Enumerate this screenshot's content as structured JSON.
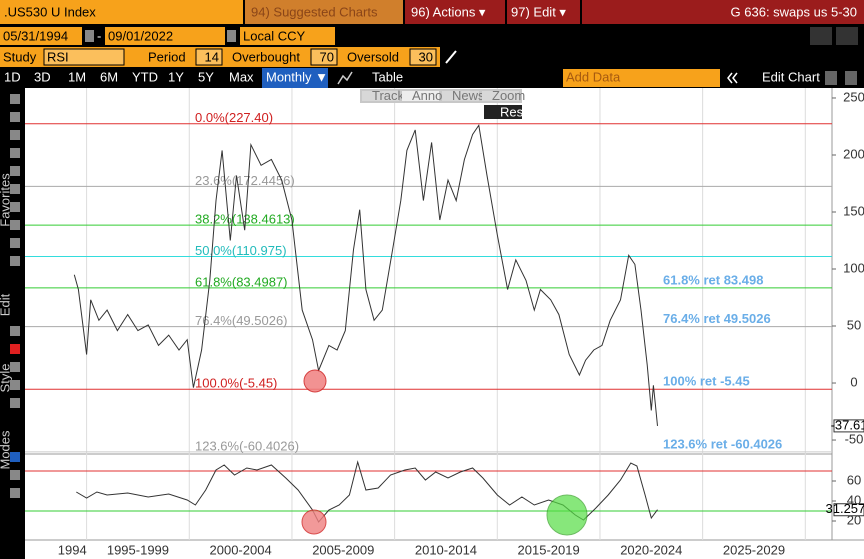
{
  "header": {
    "ticker": ".US530 U Index",
    "suggested": "94) Suggested Charts",
    "actions": "96) Actions ▾",
    "edit": "97) Edit ▾",
    "function": "G 636: swaps us 5-30"
  },
  "range": {
    "start": "05/31/1994",
    "dash": "-",
    "end": "09/01/2022",
    "currency": "Local CCY"
  },
  "study": {
    "label": "Study",
    "name": "RSI",
    "period_label": "Period",
    "period": 14,
    "overbought_label": "Overbought",
    "overbought": 70,
    "oversold_label": "Oversold",
    "oversold": 30
  },
  "toolbar": {
    "periods": [
      "1D",
      "3D",
      "1M",
      "6M",
      "YTD",
      "1Y",
      "5Y",
      "Max"
    ],
    "frequency": "Monthly ▼",
    "table": "Table",
    "add_data": "Add Data",
    "edit_chart": "Edit Chart"
  },
  "side_tabs": [
    "Favorites",
    "Edit",
    "Style",
    "Modes"
  ],
  "float_tools": [
    "Track",
    "Annotate",
    "News",
    "Zoom"
  ],
  "reset": "Reset",
  "chart_data": [
    {
      "type": "line",
      "xlim": [
        1992,
        2031.3
      ],
      "ylim": [
        -60.5,
        257
      ],
      "yticks": [
        250,
        200,
        150,
        100,
        50,
        0,
        -50
      ],
      "xgrid": [
        1995,
        2000,
        2005,
        2010,
        2015,
        2020,
        2025,
        2030
      ],
      "x": [
        1994.4,
        1994.6,
        1995.0,
        1995.2,
        1995.6,
        1996.0,
        1996.5,
        1997.0,
        1997.5,
        1998.0,
        1998.5,
        1999.0,
        1999.5,
        1999.9,
        2000.2,
        2000.6,
        2001.0,
        2001.3,
        2001.6,
        2002.0,
        2002.3,
        2002.7,
        2003.0,
        2003.5,
        2004.0,
        2004.5,
        2005.0,
        2005.5,
        2006.0,
        2006.3,
        2006.8,
        2007.2,
        2007.6,
        2008.0,
        2008.3,
        2008.6,
        2009.0,
        2009.4,
        2009.9,
        2010.3,
        2010.6,
        2011.0,
        2011.4,
        2011.8,
        2012.2,
        2012.6,
        2013.0,
        2013.4,
        2013.8,
        2014.1,
        2014.5,
        2015.0,
        2015.5,
        2015.9,
        2016.4,
        2016.8,
        2017.1,
        2017.6,
        2018.0,
        2018.5,
        2019.0,
        2019.3,
        2019.7,
        2020.1,
        2020.5,
        2021.0,
        2021.4,
        2021.7,
        2022.0,
        2022.3,
        2022.5,
        2022.6,
        2022.7,
        2022.8
      ],
      "series": [
        {
          "color": "#333333",
          "values": [
            95,
            82,
            25,
            73,
            55,
            64,
            46,
            60,
            46,
            51,
            33,
            42,
            29,
            38,
            -4,
            29,
            90,
            160,
            204,
            125,
            182,
            134,
            209,
            191,
            196,
            178,
            143,
            64,
            38,
            11,
            33,
            29,
            46,
            117,
            152,
            82,
            55,
            64,
            117,
            160,
            204,
            222,
            160,
            211,
            143,
            178,
            160,
            196,
            218,
            226,
            182,
            130,
            82,
            108,
            90,
            64,
            82,
            73,
            60,
            25,
            7,
            20,
            29,
            33,
            55,
            73,
            112,
            104,
            64,
            16,
            -24,
            -2,
            -19,
            -37.61
          ]
        }
      ],
      "levels": [
        {
          "value": 227.4,
          "label": "0.0%(227.40)",
          "color": "#e03030"
        },
        {
          "value": 172.4456,
          "label": "23.6%(172.4456)",
          "color": "#aaaaaa"
        },
        {
          "value": 138.4613,
          "label": "38.2%(138.4613)",
          "color": "#33cc33"
        },
        {
          "value": 110.975,
          "label": "50.0%(110.975)",
          "color": "#33dddd"
        },
        {
          "value": 83.4987,
          "label": "61.8%(83.4987)",
          "color": "#33cc33",
          "note": "61.8% ret 83.498"
        },
        {
          "value": 49.5026,
          "label": "76.4%(49.5026)",
          "color": "#aaaaaa",
          "note": "76.4% ret 49.5026"
        },
        {
          "value": -5.45,
          "label": "100.0%(-5.45)",
          "color": "#e03030",
          "note": "100% ret -5.45"
        },
        {
          "value": -60.4026,
          "label": "123.6%(-60.4026)",
          "color": "#cccccc",
          "note": "123.6% ret -60.4026"
        }
      ]
    },
    {
      "type": "line",
      "xlim": [
        1992,
        2031.3
      ],
      "ylim": [
        4,
        85
      ],
      "yticks": [
        60,
        40,
        20
      ],
      "xgrid": [
        1995,
        2000,
        2005,
        2010,
        2015,
        2020,
        2025,
        2030
      ],
      "overbought_color": "#e03030",
      "oversold_color": "#33cc33",
      "xticks": [
        {
          "value": 1994.3,
          "label": "1994"
        },
        {
          "value": 1997.5,
          "label": "1995-1999"
        },
        {
          "value": 2002.5,
          "label": "2000-2004"
        },
        {
          "value": 2007.5,
          "label": "2005-2009"
        },
        {
          "value": 2012.5,
          "label": "2010-2014"
        },
        {
          "value": 2017.5,
          "label": "2015-2019"
        },
        {
          "value": 2022.5,
          "label": "2020-2024"
        },
        {
          "value": 2027.5,
          "label": "2025-2029"
        }
      ],
      "x": [
        1994.5,
        1995.0,
        1995.5,
        1996.0,
        1997.0,
        1998.0,
        1999.0,
        1999.9,
        2000.3,
        2000.8,
        2001.3,
        2001.7,
        2002.2,
        2002.8,
        2003.3,
        2004.0,
        2004.7,
        2005.3,
        2006.0,
        2006.3,
        2006.8,
        2007.3,
        2007.8,
        2008.2,
        2008.6,
        2009.2,
        2009.8,
        2010.5,
        2011.0,
        2011.5,
        2012.0,
        2012.6,
        2013.2,
        2013.8,
        2014.3,
        2015.0,
        2015.6,
        2016.2,
        2016.8,
        2017.5,
        2018.2,
        2018.8,
        2019.2,
        2019.8,
        2020.4,
        2021.0,
        2021.5,
        2021.8,
        2022.2,
        2022.5,
        2022.8
      ],
      "series": [
        {
          "color": "#333333",
          "values": [
            49,
            43,
            49,
            46,
            48,
            44,
            47,
            41,
            36,
            51,
            71,
            76,
            66,
            73,
            71,
            76,
            63,
            51,
            31,
            19,
            31,
            36,
            46,
            79,
            51,
            53,
            66,
            71,
            73,
            61,
            69,
            63,
            69,
            73,
            63,
            46,
            36,
            44,
            36,
            41,
            36,
            26,
            21,
            33,
            46,
            61,
            78,
            75,
            46,
            23,
            31.2577
          ]
        }
      ]
    }
  ]
}
